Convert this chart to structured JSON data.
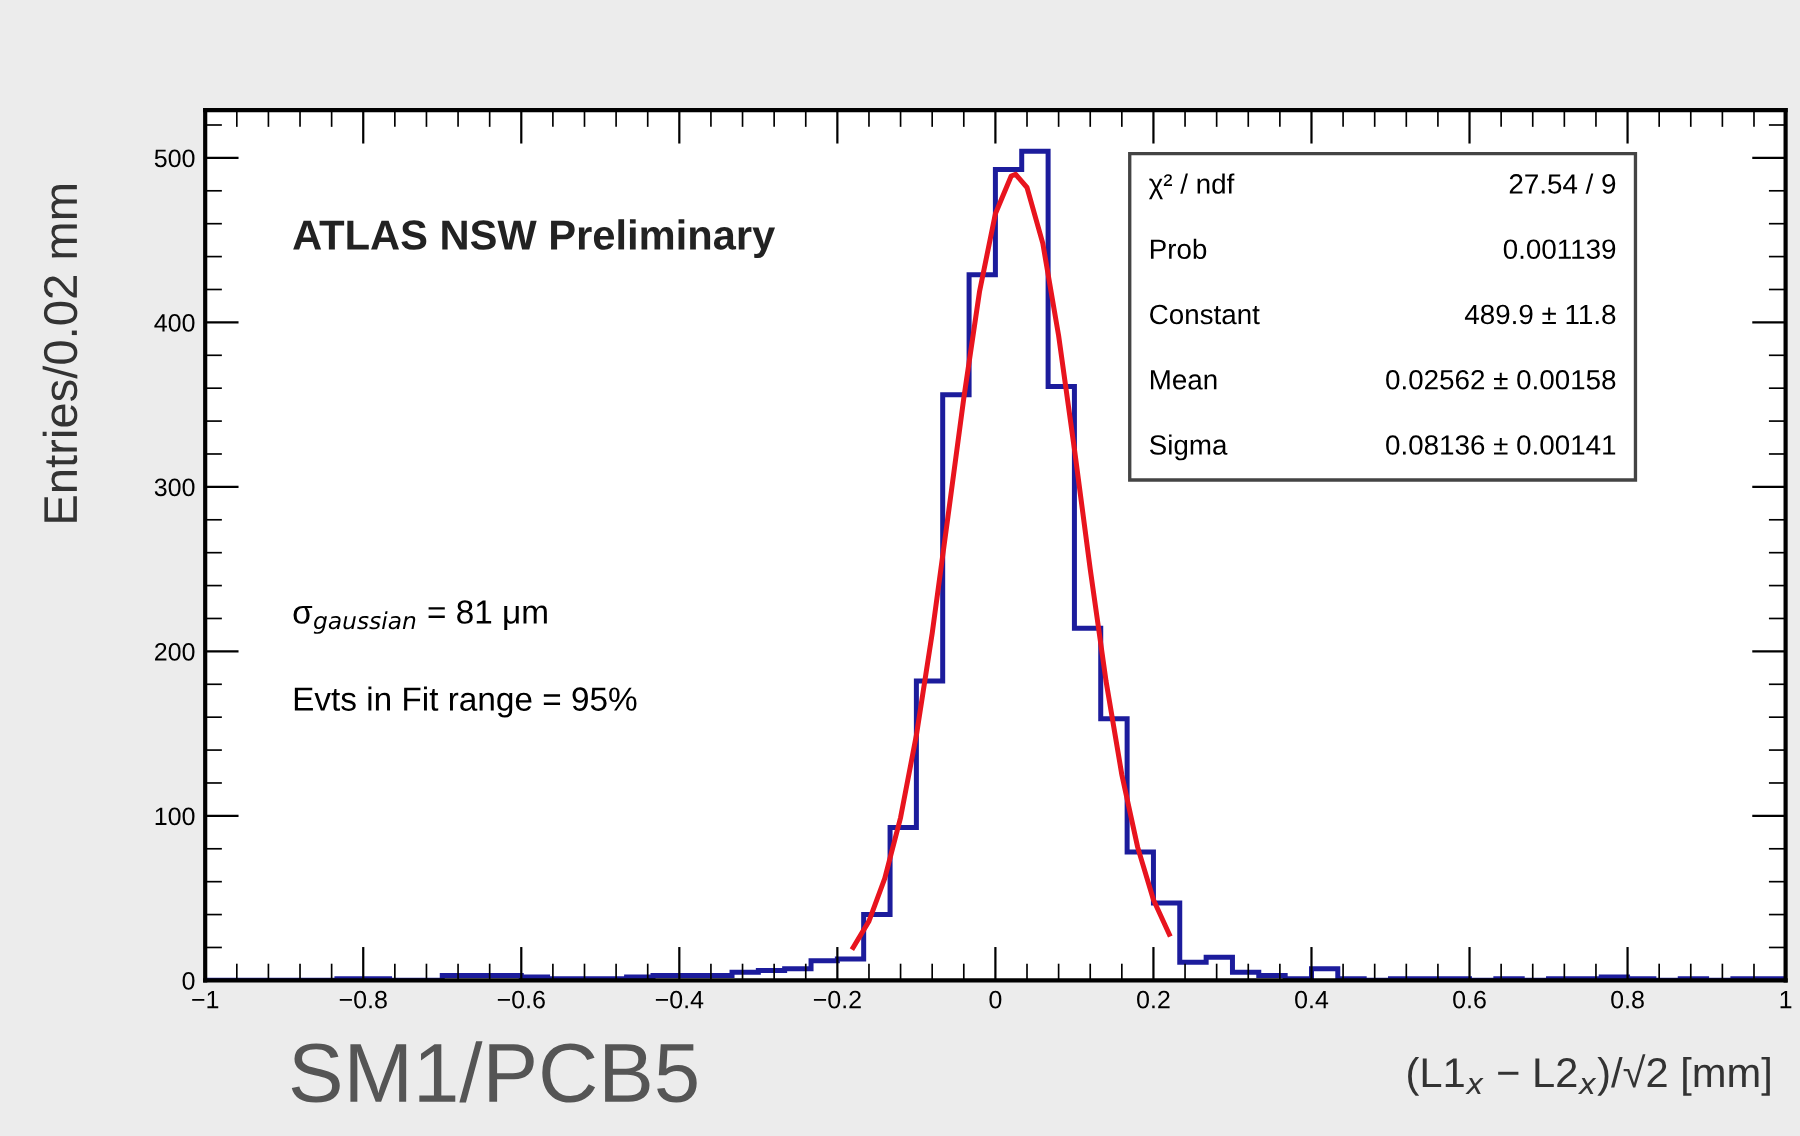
{
  "chart_data": {
    "type": "histogram",
    "xlabel": "(L1$_{x}$ − L2$_{x}$)/√2 [mm]",
    "ylabel": "Entries/0.02 mm",
    "annotations": [
      "ATLAS NSW Preliminary",
      "σ$_{gaussian}$ = 81 μm",
      "Evts in Fit range = 95%",
      "χ² / ndf",
      "27.54 / 9",
      "Prob",
      "0.001139",
      "Constant",
      "489.9 ± 11.8",
      "Mean",
      "0.02562 ± 0.00158",
      "Sigma",
      "0.08136 ± 0.00141",
      "SM1/PCB5"
    ],
    "bins": [
      -1,
      -0.9667,
      -0.9333,
      -0.9,
      -0.8667,
      -0.8333,
      -0.8,
      -0.7667,
      -0.7333,
      -0.7,
      -0.6667,
      -0.6333,
      -0.6,
      -0.5667,
      -0.5333,
      -0.5,
      -0.4667,
      -0.4333,
      -0.4,
      -0.3667,
      -0.3333,
      -0.3,
      -0.2667,
      -0.2333,
      -0.2,
      -0.1667,
      -0.1333,
      -0.1,
      -0.0667,
      -0.0333,
      0,
      0.0333,
      0.0667,
      0.1,
      0.1333,
      0.1667,
      0.2,
      0.2333,
      0.2667,
      0.3,
      0.3333,
      0.3667,
      0.4,
      0.4333,
      0.4667,
      0.5,
      0.5333,
      0.5667,
      0.6,
      0.6333,
      0.6667,
      0.7,
      0.7333,
      0.7667,
      0.8,
      0.8333,
      0.8667,
      0.9,
      0.9333,
      0.9667,
      1
    ],
    "series": [
      {
        "color": "#1c1c9c",
        "values": [
          0,
          0,
          0,
          0,
          0,
          1,
          1,
          0,
          0,
          3,
          3,
          3,
          2,
          1,
          1,
          1,
          2,
          3,
          3,
          3,
          5,
          6,
          7,
          12,
          13,
          40,
          93,
          182,
          356,
          429,
          493,
          504,
          361,
          214,
          159,
          78,
          47,
          11,
          14,
          5,
          3,
          1,
          7,
          1,
          0,
          1,
          1,
          1,
          0,
          1,
          0,
          1,
          1,
          2,
          1,
          0,
          1,
          0,
          1,
          1
        ]
      },
      {
        "type": "line",
        "color": "#e8141e",
        "line_style": "solid",
        "x": [
          -0.18,
          -0.16,
          -0.14,
          -0.12,
          -0.1,
          -0.08,
          -0.06,
          -0.04,
          -0.02,
          0,
          0.02,
          0.02562,
          0.04,
          0.06,
          0.08,
          0.1,
          0.12,
          0.14,
          0.16,
          0.18,
          0.2,
          0.22
        ],
        "values": [
          20,
          36,
          62,
          99,
          149,
          211,
          282,
          354,
          419,
          466,
          489,
          490,
          482,
          448,
          392,
          323,
          250,
          182,
          125,
          81,
          49,
          28
        ]
      }
    ],
    "xlim": [
      -1,
      1
    ],
    "ylim": [
      0,
      529
    ],
    "xticks": [
      {
        "value": -1,
        "label": "−1"
      },
      {
        "value": -0.8,
        "label": "−0.8"
      },
      {
        "value": -0.6,
        "label": "−0.6"
      },
      {
        "value": -0.4,
        "label": "−0.4"
      },
      {
        "value": -0.2,
        "label": "−0.2"
      },
      0,
      0.2,
      0.4,
      0.6,
      0.8,
      1
    ],
    "yticks": [
      0,
      100,
      200,
      300,
      400,
      500
    ],
    "grid": false,
    "legend": false
  }
}
